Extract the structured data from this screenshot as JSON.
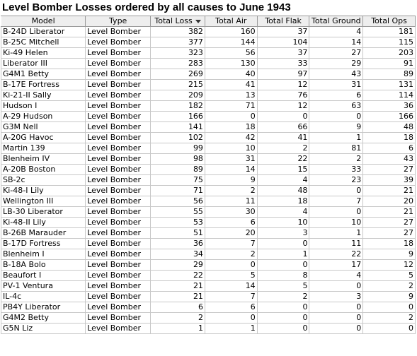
{
  "title": "Level Bomber Losses ordered by all causes to June 1943",
  "columns": [
    "Model",
    "Type",
    "Total Loss",
    "Total Air",
    "Total Flak",
    "Total Ground",
    "Total Ops"
  ],
  "sort_icon": "sort-descending-icon",
  "rows": [
    [
      "B-24D Liberator",
      "Level Bomber",
      "382",
      "160",
      "37",
      "4",
      "181"
    ],
    [
      "B-25C Mitchell",
      "Level Bomber",
      "377",
      "144",
      "104",
      "14",
      "115"
    ],
    [
      "Ki-49 Helen",
      "Level Bomber",
      "323",
      "56",
      "37",
      "27",
      "203"
    ],
    [
      "Liberator III",
      "Level Bomber",
      "283",
      "130",
      "33",
      "29",
      "91"
    ],
    [
      "G4M1 Betty",
      "Level Bomber",
      "269",
      "40",
      "97",
      "43",
      "89"
    ],
    [
      "B-17E Fortress",
      "Level Bomber",
      "215",
      "41",
      "12",
      "31",
      "131"
    ],
    [
      "Ki-21-II Sally",
      "Level Bomber",
      "209",
      "13",
      "76",
      "6",
      "114"
    ],
    [
      "Hudson I",
      "Level Bomber",
      "182",
      "71",
      "12",
      "63",
      "36"
    ],
    [
      "A-29 Hudson",
      "Level Bomber",
      "166",
      "0",
      "0",
      "0",
      "166"
    ],
    [
      "G3M Nell",
      "Level Bomber",
      "141",
      "18",
      "66",
      "9",
      "48"
    ],
    [
      "A-20G Havoc",
      "Level Bomber",
      "102",
      "42",
      "41",
      "1",
      "18"
    ],
    [
      "Martin 139",
      "Level Bomber",
      "99",
      "10",
      "2",
      "81",
      "6"
    ],
    [
      "Blenheim IV",
      "Level Bomber",
      "98",
      "31",
      "22",
      "2",
      "43"
    ],
    [
      "A-20B Boston",
      "Level Bomber",
      "89",
      "14",
      "15",
      "33",
      "27"
    ],
    [
      "SB-2c",
      "Level Bomber",
      "75",
      "9",
      "4",
      "23",
      "39"
    ],
    [
      "Ki-48-I Lily",
      "Level Bomber",
      "71",
      "2",
      "48",
      "0",
      "21"
    ],
    [
      "Wellington III",
      "Level Bomber",
      "56",
      "11",
      "18",
      "7",
      "20"
    ],
    [
      "LB-30 Liberator",
      "Level Bomber",
      "55",
      "30",
      "4",
      "0",
      "21"
    ],
    [
      "Ki-48-II Lily",
      "Level Bomber",
      "53",
      "6",
      "10",
      "10",
      "27"
    ],
    [
      "B-26B Marauder",
      "Level Bomber",
      "51",
      "20",
      "3",
      "1",
      "27"
    ],
    [
      "B-17D Fortress",
      "Level Bomber",
      "36",
      "7",
      "0",
      "11",
      "18"
    ],
    [
      "Blenheim I",
      "Level Bomber",
      "34",
      "2",
      "1",
      "22",
      "9"
    ],
    [
      "B-18A Bolo",
      "Level Bomber",
      "29",
      "0",
      "0",
      "17",
      "12"
    ],
    [
      "Beaufort I",
      "Level Bomber",
      "22",
      "5",
      "8",
      "4",
      "5"
    ],
    [
      "PV-1 Ventura",
      "Level Bomber",
      "21",
      "14",
      "5",
      "0",
      "2"
    ],
    [
      "IL-4c",
      "Level Bomber",
      "21",
      "7",
      "2",
      "3",
      "9"
    ],
    [
      "PB4Y Liberator",
      "Level Bomber",
      "6",
      "6",
      "0",
      "0",
      "0"
    ],
    [
      "G4M2 Betty",
      "Level Bomber",
      "2",
      "0",
      "0",
      "0",
      "2"
    ],
    [
      "G5N Liz",
      "Level Bomber",
      "1",
      "1",
      "0",
      "0",
      "0"
    ]
  ]
}
